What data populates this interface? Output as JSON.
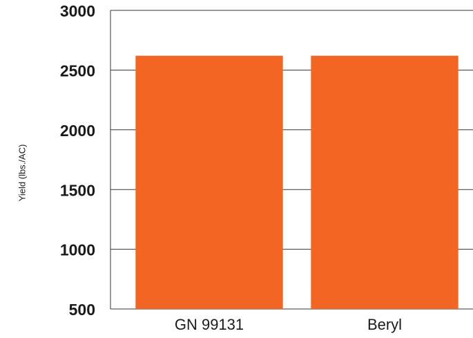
{
  "chart_data": {
    "type": "bar",
    "y_label": "Yield (lbs./AC)",
    "categories": [
      "GN 99131",
      "Beryl"
    ],
    "values": [
      2620,
      2620
    ],
    "color": "#f26522",
    "ylim": [
      500,
      3000
    ],
    "yticks": [
      500,
      1000,
      1500,
      2000,
      2500,
      3000
    ],
    "grid": true
  }
}
